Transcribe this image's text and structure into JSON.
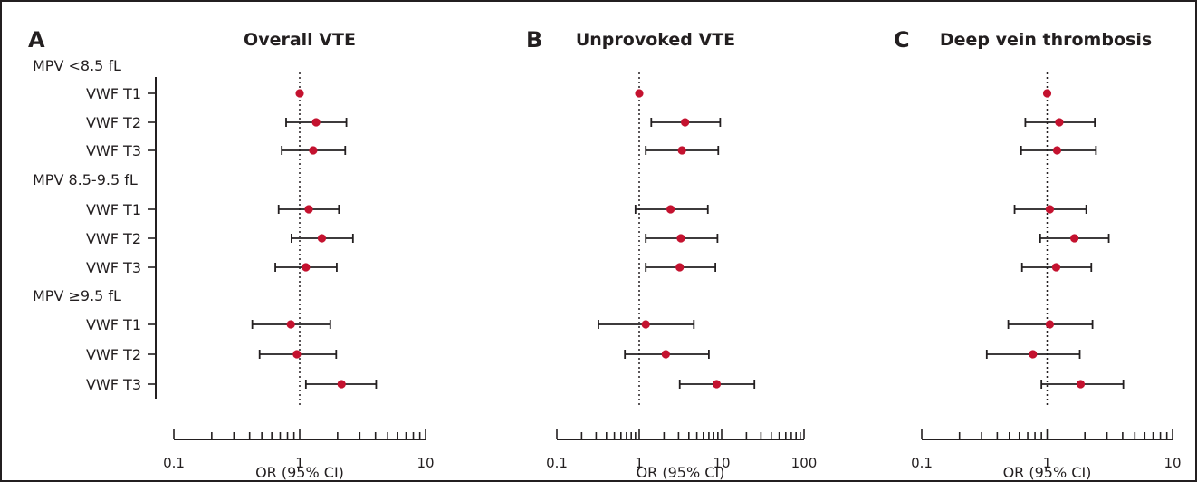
{
  "rows": [
    {
      "label": "MPV <8.5 fL",
      "kind": "group"
    },
    {
      "label": "VWF T1",
      "kind": "item"
    },
    {
      "label": "VWF T2",
      "kind": "item"
    },
    {
      "label": "VWF T3",
      "kind": "item"
    },
    {
      "label": "MPV 8.5-9.5 fL",
      "kind": "group"
    },
    {
      "label": "VWF T1",
      "kind": "item"
    },
    {
      "label": "VWF T2",
      "kind": "item"
    },
    {
      "label": "VWF T3",
      "kind": "item"
    },
    {
      "label": "MPV ≥9.5 fL",
      "kind": "group"
    },
    {
      "label": "VWF T1",
      "kind": "item"
    },
    {
      "label": "VWF T2",
      "kind": "item"
    },
    {
      "label": "VWF T3",
      "kind": "item"
    }
  ],
  "colors": {
    "point": "#c4122f",
    "ink": "#231f20",
    "background": "#ffffff"
  },
  "chart_data": [
    {
      "type": "scatter",
      "panel": "A",
      "title": "Overall VTE",
      "xlabel": "OR (95% CI)",
      "xscale": "log",
      "xlim": [
        0.1,
        10
      ],
      "xticks": [
        "0.1",
        "1",
        "10"
      ],
      "reference_line": 1,
      "points": [
        {
          "row": "VWF T1",
          "or": 1.0
        },
        {
          "row": "VWF T2",
          "or": 1.35,
          "lower": 0.78,
          "upper": 2.35
        },
        {
          "row": "VWF T3",
          "or": 1.28,
          "lower": 0.72,
          "upper": 2.3
        },
        {
          "row": "VWF T1",
          "or": 1.18,
          "lower": 0.68,
          "upper": 2.05
        },
        {
          "row": "VWF T2",
          "or": 1.5,
          "lower": 0.86,
          "upper": 2.65
        },
        {
          "row": "VWF T3",
          "or": 1.12,
          "lower": 0.64,
          "upper": 1.97
        },
        {
          "row": "VWF T1",
          "or": 0.85,
          "lower": 0.42,
          "upper": 1.75
        },
        {
          "row": "VWF T2",
          "or": 0.95,
          "lower": 0.48,
          "upper": 1.95
        },
        {
          "row": "VWF T3",
          "or": 2.15,
          "lower": 1.12,
          "upper": 4.05
        }
      ]
    },
    {
      "type": "scatter",
      "panel": "B",
      "title": "Unprovoked VTE",
      "xlabel": "OR (95% CI)",
      "xscale": "log",
      "xlim": [
        0.1,
        100
      ],
      "xticks": [
        "0.1",
        "1",
        "10",
        "100"
      ],
      "reference_line": 1,
      "points": [
        {
          "row": "VWF T1",
          "or": 1.0
        },
        {
          "row": "VWF T2",
          "or": 3.6,
          "lower": 1.4,
          "upper": 9.6
        },
        {
          "row": "VWF T3",
          "or": 3.3,
          "lower": 1.2,
          "upper": 9.1
        },
        {
          "row": "VWF T1",
          "or": 2.4,
          "lower": 0.9,
          "upper": 6.8
        },
        {
          "row": "VWF T2",
          "or": 3.2,
          "lower": 1.2,
          "upper": 8.9
        },
        {
          "row": "VWF T3",
          "or": 3.1,
          "lower": 1.2,
          "upper": 8.4
        },
        {
          "row": "VWF T1",
          "or": 1.2,
          "lower": 0.32,
          "upper": 4.6
        },
        {
          "row": "VWF T2",
          "or": 2.1,
          "lower": 0.67,
          "upper": 7.0
        },
        {
          "row": "VWF T3",
          "or": 8.7,
          "lower": 3.1,
          "upper": 25
        }
      ]
    },
    {
      "type": "scatter",
      "panel": "C",
      "title": "Deep vein thrombosis",
      "xlabel": "OR (95% CI)",
      "xscale": "log",
      "xlim": [
        0.1,
        10
      ],
      "xticks": [
        "0.1",
        "1",
        "10"
      ],
      "reference_line": 1,
      "points": [
        {
          "row": "VWF T1",
          "or": 1.0
        },
        {
          "row": "VWF T2",
          "or": 1.25,
          "lower": 0.67,
          "upper": 2.4
        },
        {
          "row": "VWF T3",
          "or": 1.2,
          "lower": 0.62,
          "upper": 2.45
        },
        {
          "row": "VWF T1",
          "or": 1.05,
          "lower": 0.55,
          "upper": 2.05
        },
        {
          "row": "VWF T2",
          "or": 1.65,
          "lower": 0.88,
          "upper": 3.1
        },
        {
          "row": "VWF T3",
          "or": 1.18,
          "lower": 0.63,
          "upper": 2.25
        },
        {
          "row": "VWF T1",
          "or": 1.05,
          "lower": 0.49,
          "upper": 2.3
        },
        {
          "row": "VWF T2",
          "or": 0.77,
          "lower": 0.33,
          "upper": 1.82
        },
        {
          "row": "VWF T3",
          "or": 1.85,
          "lower": 0.9,
          "upper": 4.05
        }
      ]
    }
  ]
}
